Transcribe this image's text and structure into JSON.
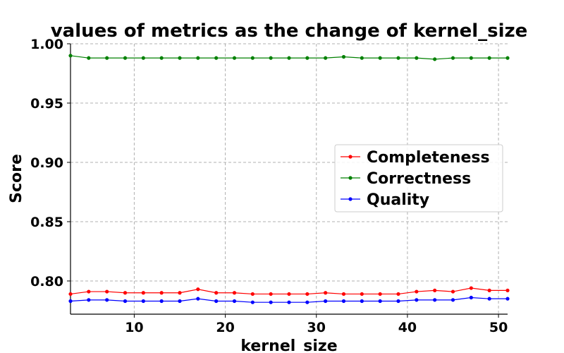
{
  "chart_data": {
    "type": "line",
    "title": "values of metrics as the change of kernel_size",
    "xlabel": "kernel_size",
    "ylabel": "Score",
    "xlim": [
      3,
      51
    ],
    "ylim": [
      0.772,
      1.0
    ],
    "xticks": [
      10,
      20,
      30,
      40,
      50
    ],
    "yticks": [
      0.8,
      0.85,
      0.9,
      0.95,
      1.0
    ],
    "ytick_labels": [
      "0.80",
      "0.85",
      "0.90",
      "0.95",
      "1.00"
    ],
    "grid": true,
    "legend_position": "center-right",
    "x": [
      3,
      5,
      7,
      9,
      11,
      13,
      15,
      17,
      19,
      21,
      23,
      25,
      27,
      29,
      31,
      33,
      35,
      37,
      39,
      41,
      43,
      45,
      47,
      49,
      51
    ],
    "series": [
      {
        "name": "Completeness",
        "color": "#ff0000",
        "values": [
          0.789,
          0.791,
          0.791,
          0.79,
          0.79,
          0.79,
          0.79,
          0.793,
          0.79,
          0.79,
          0.789,
          0.789,
          0.789,
          0.789,
          0.79,
          0.789,
          0.789,
          0.789,
          0.789,
          0.791,
          0.792,
          0.791,
          0.794,
          0.792,
          0.792
        ]
      },
      {
        "name": "Correctness",
        "color": "#008000",
        "values": [
          0.99,
          0.988,
          0.988,
          0.988,
          0.988,
          0.988,
          0.988,
          0.988,
          0.988,
          0.988,
          0.988,
          0.988,
          0.988,
          0.988,
          0.988,
          0.989,
          0.988,
          0.988,
          0.988,
          0.988,
          0.987,
          0.988,
          0.988,
          0.988,
          0.988
        ]
      },
      {
        "name": "Quality",
        "color": "#0000ff",
        "values": [
          0.783,
          0.784,
          0.784,
          0.783,
          0.783,
          0.783,
          0.783,
          0.785,
          0.783,
          0.783,
          0.782,
          0.782,
          0.782,
          0.782,
          0.783,
          0.783,
          0.783,
          0.783,
          0.783,
          0.784,
          0.784,
          0.784,
          0.786,
          0.785,
          0.785
        ]
      }
    ]
  }
}
